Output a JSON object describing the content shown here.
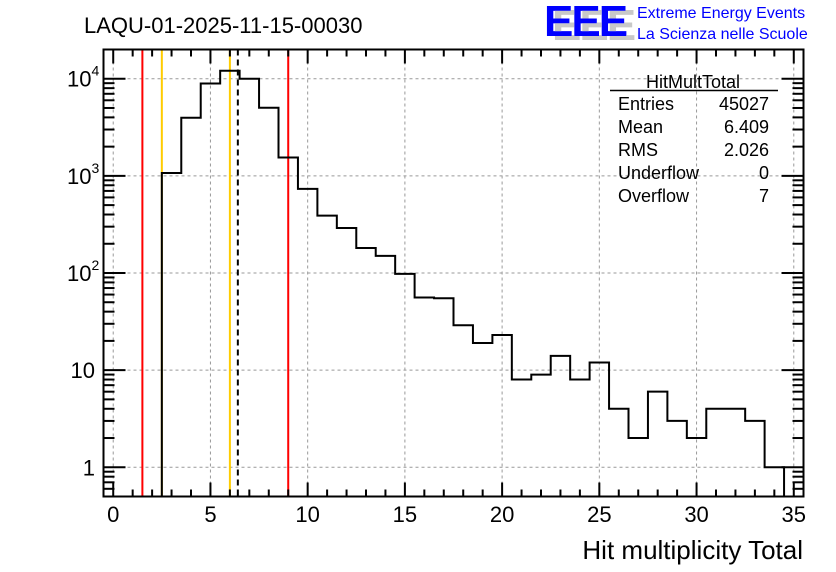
{
  "chart_data": {
    "type": "bar",
    "histogram": true,
    "title": "LAQU-01-2025-11-15-00030",
    "xlabel": "Hit multiplicity Total",
    "ylabel": "",
    "xlim": [
      -0.5,
      35.5
    ],
    "ylim": [
      0.5,
      20000
    ],
    "yscale": "log",
    "grid": true,
    "bin_width": 1,
    "bin_centers": [
      3,
      4,
      5,
      6,
      7,
      8,
      9,
      10,
      11,
      12,
      13,
      14,
      15,
      16,
      17,
      18,
      19,
      20,
      21,
      22,
      23,
      24,
      25,
      26,
      27,
      28,
      29,
      30,
      31,
      32,
      33,
      34
    ],
    "values": [
      1070,
      3970,
      8940,
      12090,
      10000,
      5020,
      1545,
      735,
      390,
      291,
      181,
      150,
      98,
      56,
      55,
      29,
      19,
      23,
      8,
      9,
      14,
      8,
      12,
      4,
      2,
      6,
      3,
      2,
      4,
      4,
      3,
      1
    ],
    "x_ticks": [
      "0",
      "5",
      "10",
      "15",
      "20",
      "25",
      "30",
      "35"
    ],
    "x_tick_values": [
      0,
      5,
      10,
      15,
      20,
      25,
      30,
      35
    ],
    "y_ticks": [
      {
        "value": 1,
        "base": "1",
        "exp": ""
      },
      {
        "value": 10,
        "base": "10",
        "exp": ""
      },
      {
        "value": 100,
        "base": "10",
        "exp": "2"
      },
      {
        "value": 1000,
        "base": "10",
        "exp": "3"
      },
      {
        "value": 10000,
        "base": "10",
        "exp": "4"
      }
    ],
    "vertical_lines": [
      {
        "x": 1.5,
        "color": "#ff0000",
        "style": "solid"
      },
      {
        "x": 2.5,
        "color": "#ffcc00",
        "style": "solid"
      },
      {
        "x": 6.0,
        "color": "#ffcc00",
        "style": "solid"
      },
      {
        "x": 6.409,
        "color": "#000000",
        "style": "dashed"
      },
      {
        "x": 9.0,
        "color": "#ff0000",
        "style": "solid"
      }
    ],
    "stats_box": {
      "title": "HitMultTotal",
      "rows": [
        {
          "label": "Entries",
          "value": "45027"
        },
        {
          "label": "Mean",
          "value": "6.409"
        },
        {
          "label": "RMS",
          "value": "2.026"
        },
        {
          "label": "Underflow",
          "value": "0"
        },
        {
          "label": "Overflow",
          "value": "7"
        }
      ]
    }
  },
  "logo": {
    "mark": "EEE",
    "line1": "Extreme Energy Events",
    "line2": "La Scienza nelle Scuole",
    "color": "#0000ff"
  }
}
